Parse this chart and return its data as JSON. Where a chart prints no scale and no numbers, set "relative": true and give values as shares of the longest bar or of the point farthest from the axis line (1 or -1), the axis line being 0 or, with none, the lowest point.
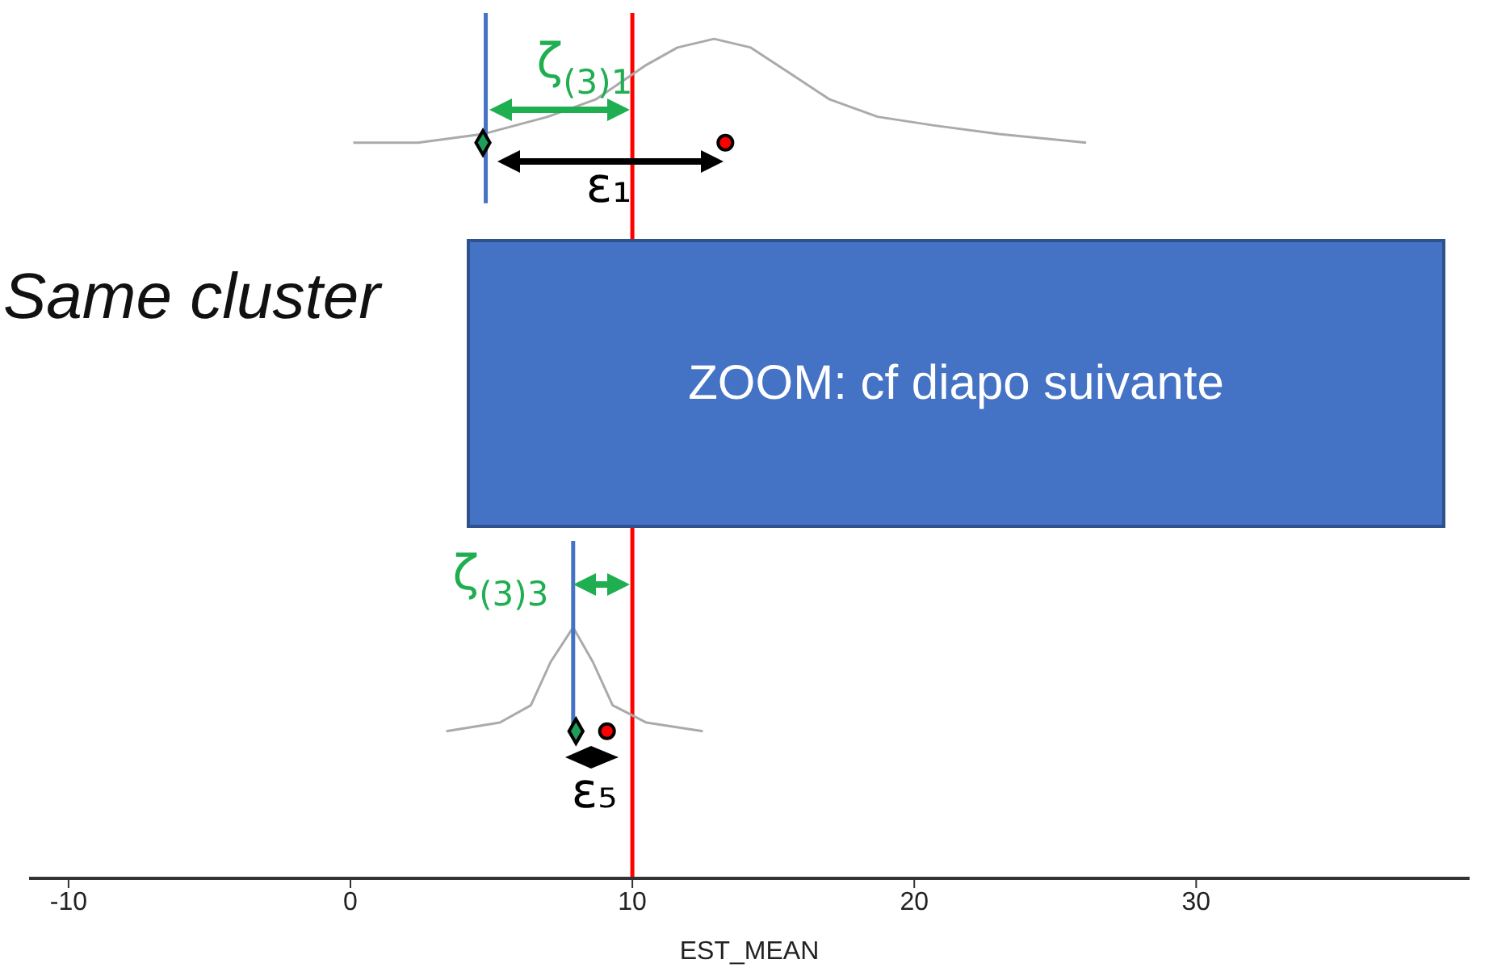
{
  "chart_data": {
    "type": "line",
    "relative": true,
    "xlabel": "EST_MEAN",
    "xlim": [
      -11.4,
      39.7
    ],
    "xticks": [
      -10,
      0,
      10,
      20,
      30
    ],
    "grid": false,
    "legend": false,
    "series": [
      {
        "color": "#aaaaaa",
        "marker": "none",
        "x": [
          0.1,
          2.4,
          4.7,
          7.0,
          8.7,
          10.5,
          11.6,
          12.9,
          14.2,
          15.6,
          17.0,
          18.7,
          20.7,
          23.0,
          26.1
        ],
        "values": [
          0.85,
          0.85,
          0.86,
          0.88,
          0.9,
          0.94,
          0.96,
          0.97,
          0.96,
          0.93,
          0.9,
          0.88,
          0.87,
          0.86,
          0.85
        ]
      },
      {
        "color": "#aaaaaa",
        "marker": "none",
        "x": [
          3.4,
          5.3,
          6.4,
          7.1,
          7.9,
          8.6,
          9.3,
          10.5,
          12.5
        ],
        "values": [
          0.17,
          0.18,
          0.2,
          0.25,
          0.29,
          0.25,
          0.2,
          0.18,
          0.17
        ]
      },
      {
        "color": "#4472c4",
        "marker": "none",
        "x": [
          4.8,
          4.8
        ],
        "values": [
          1,
          0.78
        ]
      },
      {
        "color": "#4472c4",
        "marker": "none",
        "x": [
          7.9,
          7.9
        ],
        "values": [
          0.39,
          0.17
        ]
      },
      {
        "type": "scatter",
        "color": "#1f9e5a",
        "marker": "diamond",
        "x": [
          4.7,
          8.0
        ],
        "values": [
          0.85,
          0.17
        ]
      },
      {
        "type": "scatter",
        "color": "#ff0000",
        "marker": "circle",
        "x": [
          13.3,
          9.1
        ],
        "values": [
          0.85,
          0.17
        ]
      }
    ],
    "ref_lines": [
      {
        "axis": "x",
        "value": 10,
        "color": "#ff0000"
      }
    ],
    "annotations": [
      "ζ$_{(3)1}$",
      "ε₁",
      "ζ$_{(3)3}$",
      "ε₅",
      "Same cluster",
      "ZOOM: cf diapo suivante"
    ]
  }
}
